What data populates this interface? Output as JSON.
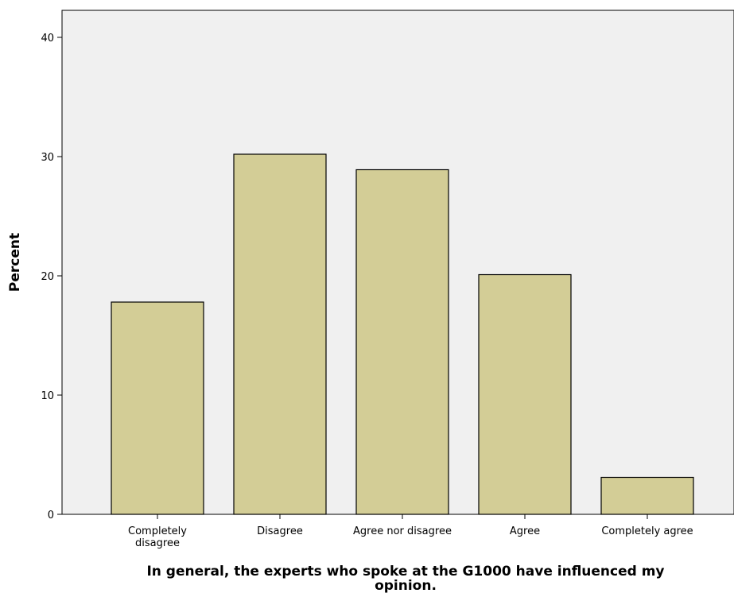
{
  "chart_data": {
    "type": "bar",
    "categories": [
      [
        "Completely",
        "disagree"
      ],
      [
        "Disagree"
      ],
      [
        "Agree nor disagree"
      ],
      [
        "Agree"
      ],
      [
        "Completely agree"
      ]
    ],
    "values": [
      17.8,
      30.2,
      28.9,
      20.1,
      3.1
    ],
    "xlabel": [
      "In general, the experts who spoke at the G1000 have influenced my",
      "opinion."
    ],
    "ylabel": "Percent",
    "ylim": [
      0,
      40
    ],
    "yticks": [
      0,
      10,
      20,
      30,
      40
    ],
    "bar_color": "#d3cd96",
    "bar_edge_color": "#000000",
    "plot_background": "#f0f0f0",
    "grid": false
  }
}
